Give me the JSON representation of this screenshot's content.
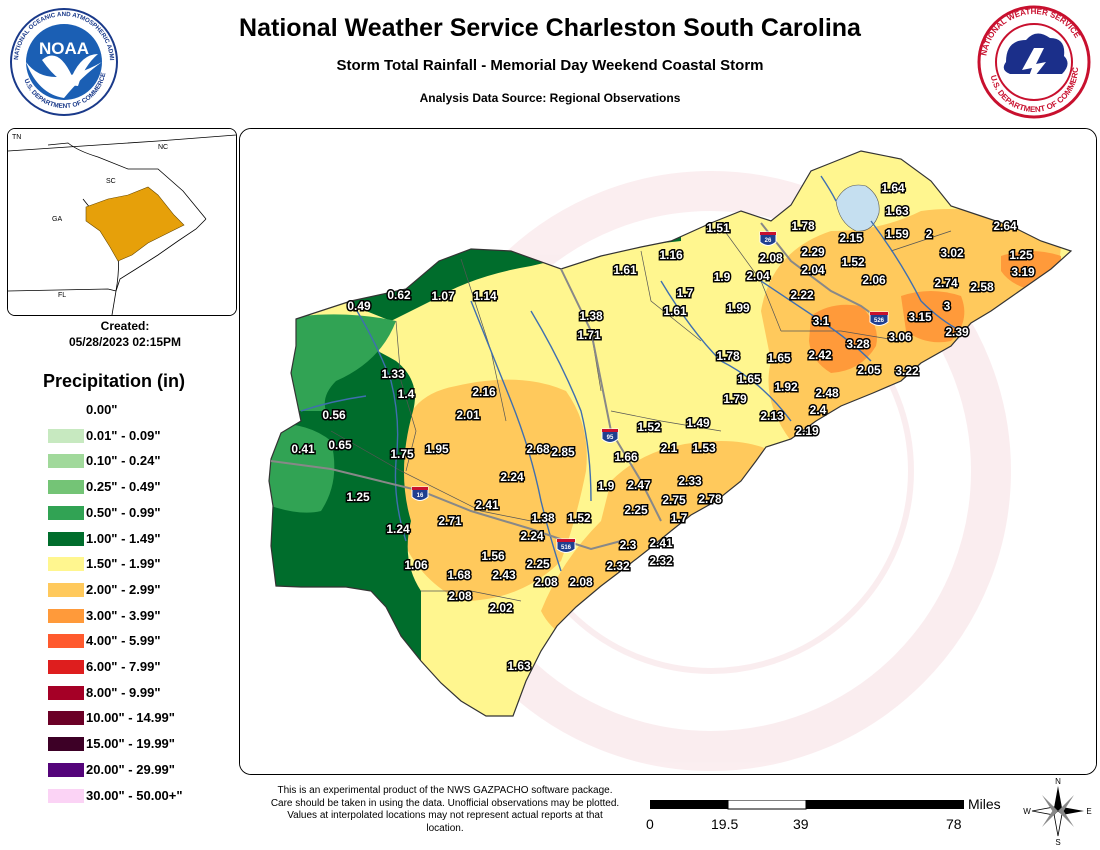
{
  "header": {
    "title": "National Weather Service Charleston South Carolina",
    "subtitle": "Storm Total Rainfall - Memorial Day Weekend Coastal Storm",
    "source": "Analysis Data Source: Regional Observations"
  },
  "logos": {
    "left": {
      "icon": "noaa-logo",
      "center_text": "NOAA",
      "ring_text": "NATIONAL OCEANIC AND ATMOSPHERIC ADMINISTRATION · U.S. DEPARTMENT OF COMMERCE"
    },
    "right": {
      "icon": "nws-logo",
      "ring_text": "NATIONAL WEATHER SERVICE · U.S. DEPARTMENT OF COMMERCE"
    }
  },
  "inset": {
    "labels": [
      "TN",
      "NC",
      "SC",
      "GA",
      "FL"
    ],
    "highlight_color": "#e6a00a"
  },
  "created": {
    "label": "Created:",
    "timestamp": "05/28/2023 02:15PM"
  },
  "legend": {
    "title": "Precipitation (in)",
    "items": [
      {
        "label": "0.00\"",
        "color": "#ffffff"
      },
      {
        "label": "0.01\" - 0.09\"",
        "color": "#c7e9c0"
      },
      {
        "label": "0.10\" - 0.24\"",
        "color": "#a1d99b"
      },
      {
        "label": "0.25\" - 0.49\"",
        "color": "#74c476"
      },
      {
        "label": "0.50\" - 0.99\"",
        "color": "#31a354"
      },
      {
        "label": "1.00\" - 1.49\"",
        "color": "#006d2c"
      },
      {
        "label": "1.50\" - 1.99\"",
        "color": "#fff68f"
      },
      {
        "label": "2.00\" - 2.99\"",
        "color": "#ffc95c"
      },
      {
        "label": "3.00\" - 3.99\"",
        "color": "#ff9a3a"
      },
      {
        "label": "4.00\" - 5.99\"",
        "color": "#ff5a2e"
      },
      {
        "label": "6.00\" - 7.99\"",
        "color": "#de1e1e"
      },
      {
        "label": "8.00\" - 9.99\"",
        "color": "#a50026"
      },
      {
        "label": "10.00\" - 14.99\"",
        "color": "#6b0026"
      },
      {
        "label": "15.00\" - 19.99\"",
        "color": "#3d0026"
      },
      {
        "label": "20.00\" - 29.99\"",
        "color": "#54047a"
      },
      {
        "label": "30.00\" - 50.00+\"",
        "color": "#fbd3f5"
      }
    ]
  },
  "map": {
    "interstates": [
      "26",
      "526",
      "95",
      "16",
      "516"
    ],
    "observations": [
      {
        "value": "1.64"
      },
      {
        "value": "1.63"
      },
      {
        "value": "1.59"
      },
      {
        "value": "2"
      },
      {
        "value": "2.64"
      },
      {
        "value": "1.51"
      },
      {
        "value": "1.78"
      },
      {
        "value": "2.15"
      },
      {
        "value": "2.29"
      },
      {
        "value": "2.08"
      },
      {
        "value": "2.04"
      },
      {
        "value": "1.52"
      },
      {
        "value": "3.02"
      },
      {
        "value": "1.25"
      },
      {
        "value": "1.16"
      },
      {
        "value": "1.61"
      },
      {
        "value": "1.9"
      },
      {
        "value": "2.04"
      },
      {
        "value": "2.06"
      },
      {
        "value": "3.19"
      },
      {
        "value": "2.74"
      },
      {
        "value": "2.58"
      },
      {
        "value": "1.7"
      },
      {
        "value": "2.22"
      },
      {
        "value": "0.49"
      },
      {
        "value": "0.62"
      },
      {
        "value": "1.07"
      },
      {
        "value": "1.14"
      },
      {
        "value": "1.99"
      },
      {
        "value": "1.61"
      },
      {
        "value": "3"
      },
      {
        "value": "1.38"
      },
      {
        "value": "3.15"
      },
      {
        "value": "3.1"
      },
      {
        "value": "1.71"
      },
      {
        "value": "3.06"
      },
      {
        "value": "2.39"
      },
      {
        "value": "3.28"
      },
      {
        "value": "1.78"
      },
      {
        "value": "1.65"
      },
      {
        "value": "2.42"
      },
      {
        "value": "1.33"
      },
      {
        "value": "2.05"
      },
      {
        "value": "3.22"
      },
      {
        "value": "1.65"
      },
      {
        "value": "1.92"
      },
      {
        "value": "2.48"
      },
      {
        "value": "2.16"
      },
      {
        "value": "1.4"
      },
      {
        "value": "1.79"
      },
      {
        "value": "2.4"
      },
      {
        "value": "2.13"
      },
      {
        "value": "0.56"
      },
      {
        "value": "2.01"
      },
      {
        "value": "2.19"
      },
      {
        "value": "1.49"
      },
      {
        "value": "1.52"
      },
      {
        "value": "0.41"
      },
      {
        "value": "0.65"
      },
      {
        "value": "1.75"
      },
      {
        "value": "1.95"
      },
      {
        "value": "2.68"
      },
      {
        "value": "2.85"
      },
      {
        "value": "2.1"
      },
      {
        "value": "1.53"
      },
      {
        "value": "1.66"
      },
      {
        "value": "2.24"
      },
      {
        "value": "2.33"
      },
      {
        "value": "2.47"
      },
      {
        "value": "1.9"
      },
      {
        "value": "1.25"
      },
      {
        "value": "2.41"
      },
      {
        "value": "2.75"
      },
      {
        "value": "2.78"
      },
      {
        "value": "1.38"
      },
      {
        "value": "1.52"
      },
      {
        "value": "2.25"
      },
      {
        "value": "1.7"
      },
      {
        "value": "2.71"
      },
      {
        "value": "1.24"
      },
      {
        "value": "2.24"
      },
      {
        "value": "2.3"
      },
      {
        "value": "2.41"
      },
      {
        "value": "1.56"
      },
      {
        "value": "1.06"
      },
      {
        "value": "2.25"
      },
      {
        "value": "2.32"
      },
      {
        "value": "2.32"
      },
      {
        "value": "1.68"
      },
      {
        "value": "2.43"
      },
      {
        "value": "2.08"
      },
      {
        "value": "2.08"
      },
      {
        "value": "2.08"
      },
      {
        "value": "2.02"
      },
      {
        "value": "1.63"
      }
    ],
    "watermark_text": "NATIONAL WEATHER SERVICE · DEPARTMENT OF COMMERCE"
  },
  "disclaimer": "This is an experimental product of the NWS GAZPACHO software package. Care should be taken in using the data. Unofficial observations may be plotted. Values at interpolated locations may not represent actual reports at that location.",
  "scale": {
    "unit": "Miles",
    "ticks": [
      "0",
      "19.5",
      "39",
      "78"
    ]
  },
  "compass": {
    "n": "N",
    "e": "E",
    "s": "S",
    "w": "W"
  }
}
